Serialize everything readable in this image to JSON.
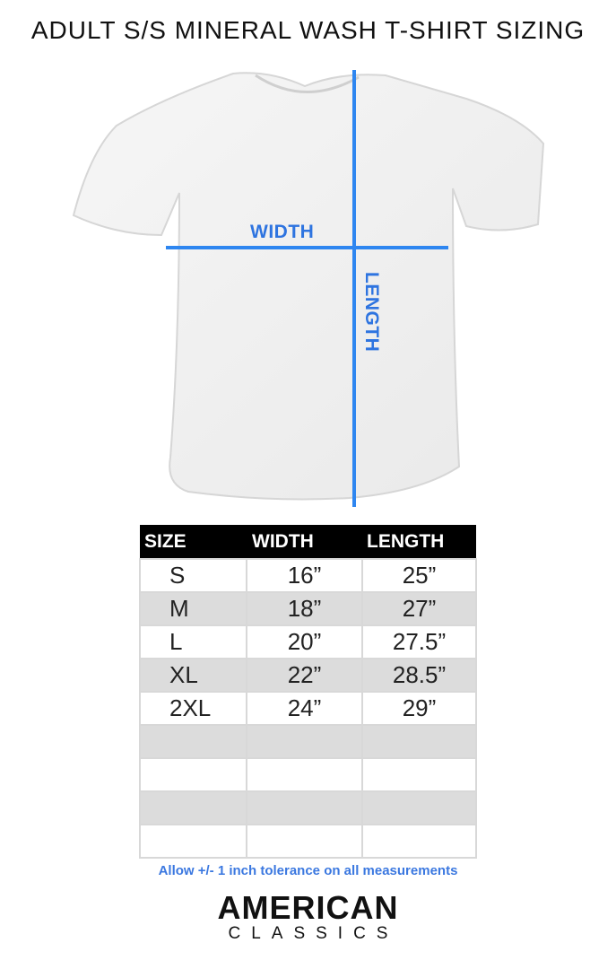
{
  "title": "ADULT S/S MINERAL WASH T-SHIRT SIZING",
  "diagram": {
    "width_label": "WIDTH",
    "length_label": "LENGTH",
    "line_color": "#2e86f0"
  },
  "table": {
    "headers": [
      "SIZE",
      "WIDTH",
      "LENGTH"
    ],
    "rows": [
      [
        "S",
        "16”",
        "25”"
      ],
      [
        "M",
        "18”",
        "27”"
      ],
      [
        "L",
        "20”",
        "27.5”"
      ],
      [
        "XL",
        "22”",
        "28.5”"
      ],
      [
        "2XL",
        "24”",
        "29”"
      ],
      [
        "",
        "",
        ""
      ],
      [
        "",
        "",
        ""
      ],
      [
        "",
        "",
        ""
      ],
      [
        "",
        "",
        ""
      ]
    ]
  },
  "note": "Allow +/- 1 inch tolerance on all measurements",
  "brand": {
    "line1": "AMERICAN",
    "line2": "CLASSICS"
  }
}
